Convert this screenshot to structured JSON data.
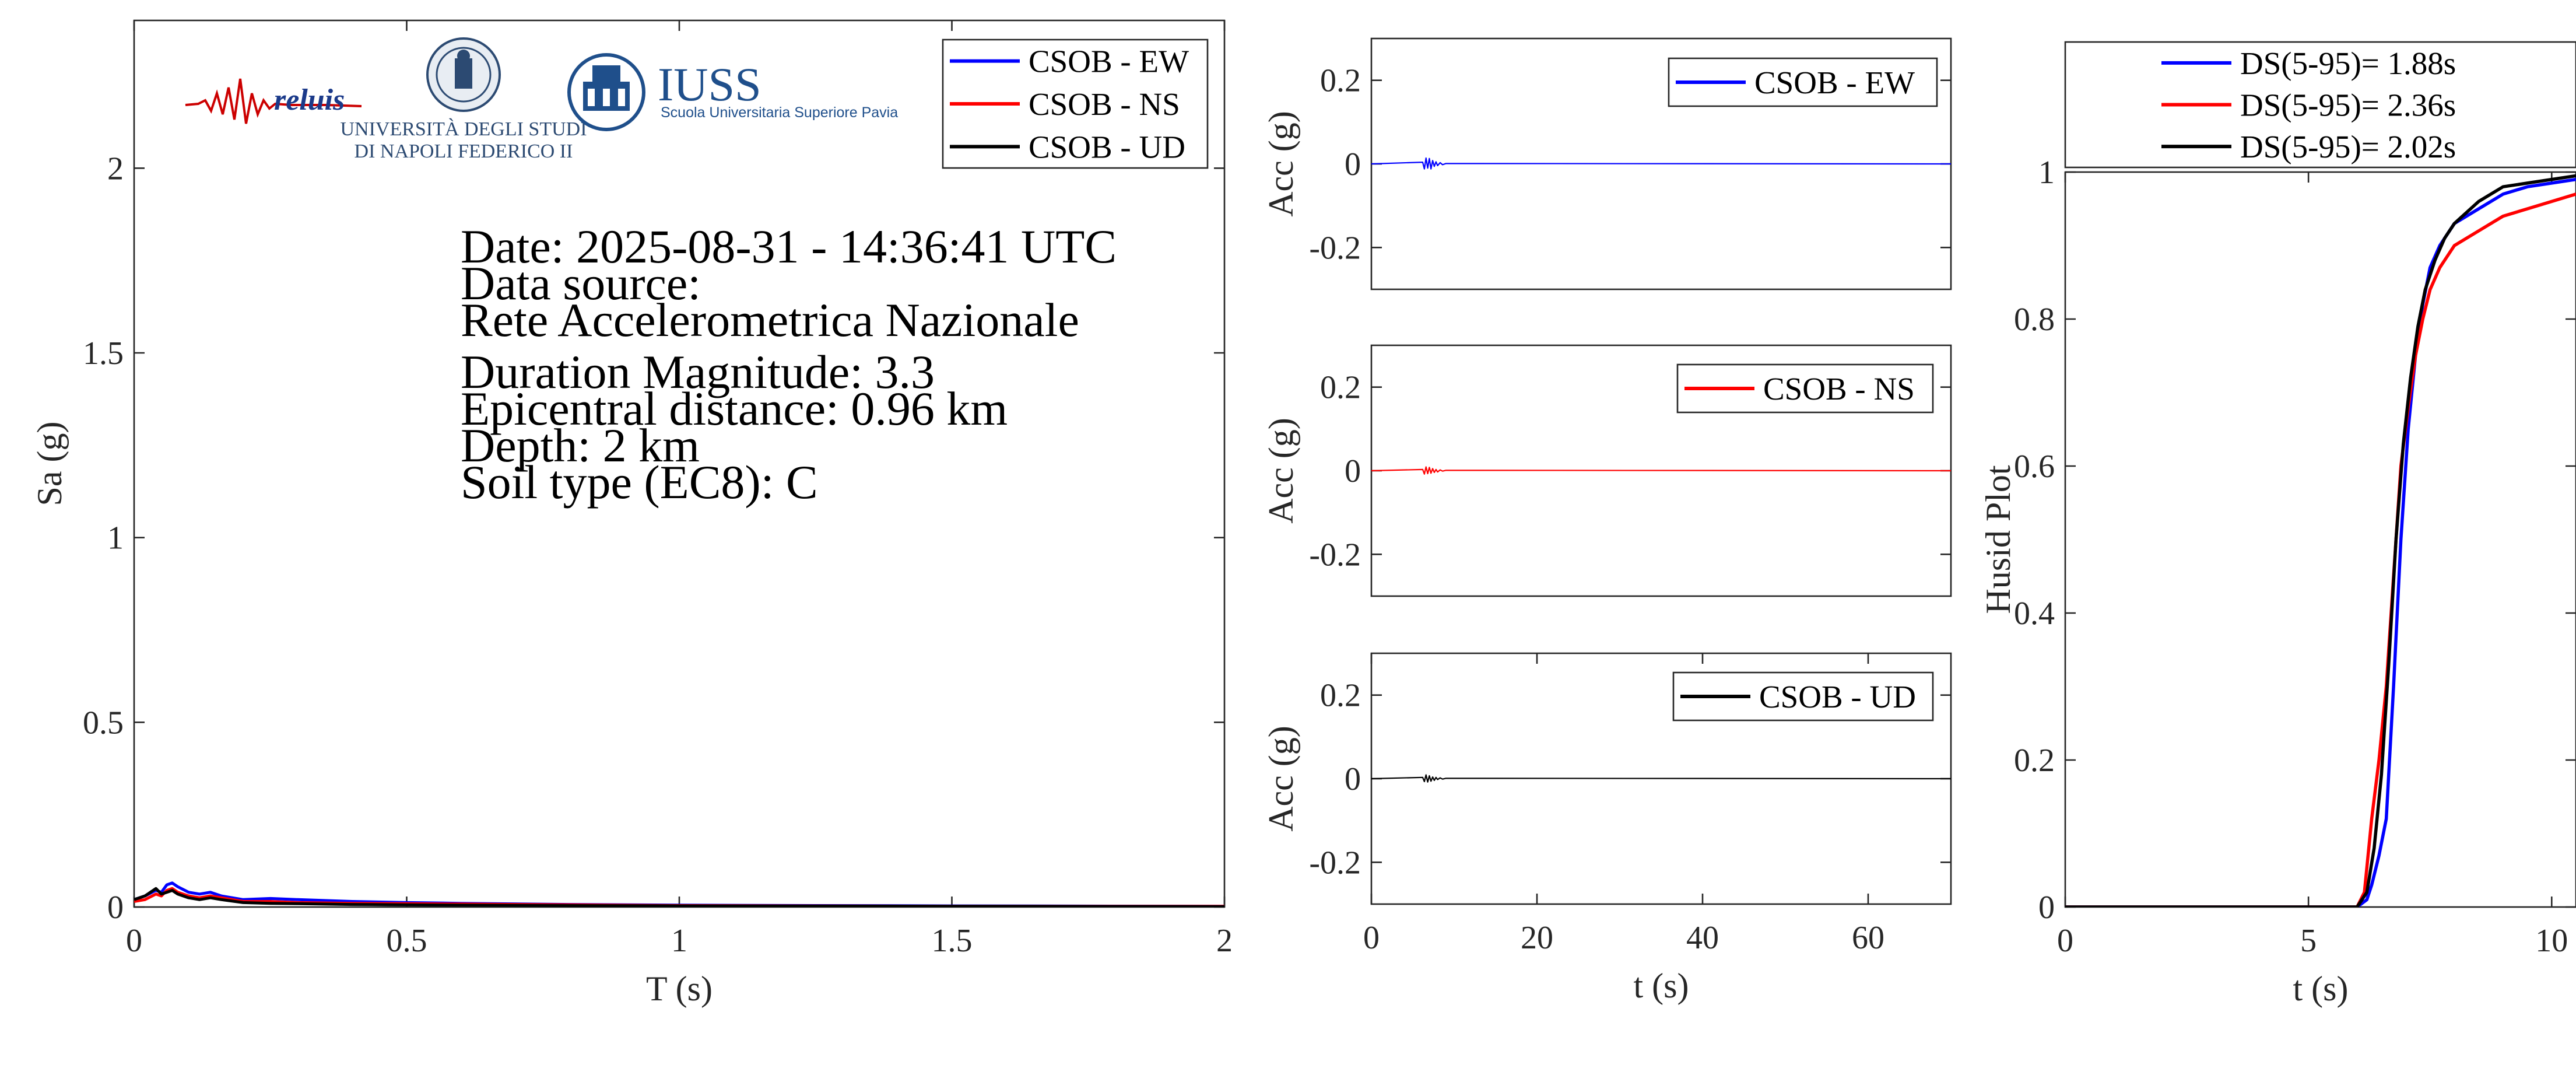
{
  "logos": {
    "reluis": "reluis",
    "unina_line1": "UNIVERSITÀ DEGLI STUDI",
    "unina_line2": "DI NAPOLI FEDERICO II",
    "iuss_title": "IUSS",
    "iuss_subtitle": "Scuola Universitaria Superiore Pavia"
  },
  "info": {
    "date": "Date: 2025-08-31 - 14:36:41 UTC",
    "source_label": "Data source:",
    "source": "Rete Accelerometrica Nazionale",
    "magnitude": "Duration Magnitude: 3.3",
    "distance": "Epicentral distance: 0.96 km",
    "depth": "Depth: 2 km",
    "soil": "Soil type (EC8): C"
  },
  "colors": {
    "ew": "#0000ff",
    "ns": "#ff0000",
    "ud": "#000000",
    "axis": "#262626"
  },
  "chart_data": [
    {
      "id": "spectrum",
      "type": "line",
      "xlabel": "T (s)",
      "ylabel": "Sa (g)",
      "xlim": [
        0,
        2
      ],
      "ylim": [
        0,
        2.4
      ],
      "xticks": [
        0,
        0.5,
        1,
        1.5,
        2
      ],
      "xtick_labels": [
        "0",
        "0.5",
        "1",
        "1.5",
        "2"
      ],
      "yticks": [
        0,
        0.5,
        1,
        1.5,
        2
      ],
      "ytick_labels": [
        "0",
        "0.5",
        "1",
        "1.5",
        "2"
      ],
      "legend_position": "top-right",
      "series": [
        {
          "name": "CSOB - EW",
          "color": "#0000ff",
          "x": [
            0,
            0.02,
            0.04,
            0.05,
            0.06,
            0.07,
            0.08,
            0.1,
            0.12,
            0.14,
            0.16,
            0.2,
            0.25,
            0.3,
            0.4,
            0.5,
            0.6,
            0.8,
            1.0,
            1.5,
            2.0
          ],
          "y": [
            0.02,
            0.03,
            0.045,
            0.04,
            0.06,
            0.065,
            0.055,
            0.04,
            0.035,
            0.04,
            0.03,
            0.02,
            0.023,
            0.02,
            0.015,
            0.012,
            0.01,
            0.007,
            0.005,
            0.003,
            0.002
          ]
        },
        {
          "name": "CSOB - NS",
          "color": "#ff0000",
          "x": [
            0,
            0.02,
            0.04,
            0.05,
            0.06,
            0.07,
            0.08,
            0.1,
            0.12,
            0.14,
            0.16,
            0.2,
            0.25,
            0.3,
            0.4,
            0.5,
            0.6,
            0.8,
            1.0,
            1.5,
            2.0
          ],
          "y": [
            0.015,
            0.02,
            0.035,
            0.03,
            0.045,
            0.05,
            0.04,
            0.03,
            0.025,
            0.03,
            0.025,
            0.015,
            0.015,
            0.012,
            0.01,
            0.009,
            0.008,
            0.006,
            0.004,
            0.002,
            0.002
          ]
        },
        {
          "name": "CSOB - UD",
          "color": "#000000",
          "x": [
            0,
            0.02,
            0.04,
            0.05,
            0.06,
            0.07,
            0.08,
            0.1,
            0.12,
            0.14,
            0.16,
            0.2,
            0.25,
            0.3,
            0.4,
            0.5,
            0.6,
            0.8,
            1.0,
            1.5,
            2.0
          ],
          "y": [
            0.02,
            0.03,
            0.05,
            0.035,
            0.04,
            0.045,
            0.035,
            0.025,
            0.02,
            0.025,
            0.02,
            0.012,
            0.01,
            0.009,
            0.007,
            0.006,
            0.005,
            0.004,
            0.003,
            0.002,
            0.001
          ]
        }
      ]
    },
    {
      "id": "acc_ew",
      "type": "line",
      "xlabel": "",
      "ylabel": "Acc (g)",
      "xlim": [
        0,
        70
      ],
      "ylim": [
        -0.3,
        0.3
      ],
      "yticks": [
        -0.2,
        0,
        0.2
      ],
      "ytick_labels": [
        "-0.2",
        "0",
        "0.2"
      ],
      "legend_position": "top-right",
      "series": [
        {
          "name": "CSOB - EW",
          "color": "#0000ff",
          "x": [
            0,
            6.2,
            6.4,
            6.6,
            6.8,
            7.0,
            7.2,
            7.4,
            7.6,
            7.8,
            8.0,
            8.3,
            8.6,
            9.0,
            70
          ],
          "y": [
            0,
            0.004,
            -0.012,
            0.014,
            -0.01,
            0.013,
            -0.012,
            0.008,
            -0.006,
            0.005,
            -0.004,
            0.003,
            -0.002,
            0.001,
            0
          ]
        }
      ]
    },
    {
      "id": "acc_ns",
      "type": "line",
      "xlabel": "",
      "ylabel": "Acc (g)",
      "xlim": [
        0,
        70
      ],
      "ylim": [
        -0.3,
        0.3
      ],
      "yticks": [
        -0.2,
        0,
        0.2
      ],
      "ytick_labels": [
        "-0.2",
        "0",
        "0.2"
      ],
      "legend_position": "top-right",
      "series": [
        {
          "name": "CSOB - NS",
          "color": "#ff0000",
          "x": [
            0,
            6.2,
            6.4,
            6.6,
            6.8,
            7.0,
            7.2,
            7.4,
            7.6,
            7.8,
            8.0,
            8.3,
            8.6,
            9.0,
            70
          ],
          "y": [
            0,
            0.003,
            -0.008,
            0.009,
            -0.007,
            0.008,
            -0.006,
            0.005,
            -0.004,
            0.003,
            -0.003,
            0.002,
            -0.001,
            0.001,
            0
          ]
        }
      ]
    },
    {
      "id": "acc_ud",
      "type": "line",
      "xlabel": "t (s)",
      "ylabel": "Acc (g)",
      "xlim": [
        0,
        70
      ],
      "ylim": [
        -0.3,
        0.3
      ],
      "xticks": [
        0,
        20,
        40,
        60
      ],
      "xtick_labels": [
        "0",
        "20",
        "40",
        "60"
      ],
      "yticks": [
        -0.2,
        0,
        0.2
      ],
      "ytick_labels": [
        "-0.2",
        "0",
        "0.2"
      ],
      "legend_position": "top-right",
      "series": [
        {
          "name": "CSOB - UD",
          "color": "#000000",
          "x": [
            0,
            6.2,
            6.4,
            6.6,
            6.8,
            7.0,
            7.2,
            7.4,
            7.6,
            7.8,
            8.0,
            8.3,
            8.6,
            9.0,
            70
          ],
          "y": [
            0,
            0.003,
            -0.007,
            0.009,
            -0.008,
            0.007,
            -0.006,
            0.004,
            -0.004,
            0.003,
            -0.002,
            0.002,
            -0.001,
            0.001,
            0
          ]
        }
      ]
    },
    {
      "id": "husid",
      "type": "line",
      "xlabel": "t (s)",
      "ylabel": "Husid Plot",
      "xlim": [
        0,
        10.5
      ],
      "ylim": [
        0,
        1
      ],
      "xticks": [
        0,
        5,
        10
      ],
      "xtick_labels": [
        "0",
        "5",
        "10"
      ],
      "yticks": [
        0,
        0.2,
        0.4,
        0.6,
        0.8,
        1
      ],
      "ytick_labels": [
        "0",
        "0.2",
        "0.4",
        "0.6",
        "0.8",
        "1"
      ],
      "legend_position": "top (outside)",
      "series": [
        {
          "name": "DS(5-95)= 1.88s",
          "color": "#0000ff",
          "x": [
            0,
            6.0,
            6.2,
            6.3,
            6.45,
            6.6,
            6.75,
            6.9,
            7.05,
            7.2,
            7.35,
            7.5,
            7.7,
            8.0,
            8.5,
            9.0,
            9.5,
            10.0,
            10.5
          ],
          "y": [
            0,
            0,
            0.01,
            0.03,
            0.07,
            0.12,
            0.3,
            0.5,
            0.65,
            0.75,
            0.82,
            0.87,
            0.9,
            0.93,
            0.95,
            0.97,
            0.98,
            0.985,
            0.99
          ]
        },
        {
          "name": "DS(5-95)= 2.36s",
          "color": "#ff0000",
          "x": [
            0,
            6.0,
            6.15,
            6.3,
            6.45,
            6.6,
            6.75,
            6.9,
            7.05,
            7.2,
            7.35,
            7.5,
            7.7,
            8.0,
            8.5,
            9.0,
            9.5,
            10.0,
            10.5
          ],
          "y": [
            0,
            0,
            0.02,
            0.12,
            0.2,
            0.3,
            0.45,
            0.6,
            0.68,
            0.75,
            0.8,
            0.84,
            0.87,
            0.9,
            0.92,
            0.94,
            0.95,
            0.96,
            0.97
          ]
        },
        {
          "name": "DS(5-95)= 2.02s",
          "color": "#000000",
          "x": [
            0,
            6.0,
            6.2,
            6.35,
            6.5,
            6.65,
            6.8,
            6.95,
            7.1,
            7.25,
            7.4,
            7.6,
            7.8,
            8.0,
            8.5,
            9.0,
            9.5,
            10.0,
            10.5
          ],
          "y": [
            0,
            0,
            0.02,
            0.08,
            0.18,
            0.33,
            0.5,
            0.63,
            0.72,
            0.79,
            0.84,
            0.88,
            0.91,
            0.93,
            0.96,
            0.98,
            0.985,
            0.99,
            0.995
          ]
        }
      ]
    }
  ]
}
